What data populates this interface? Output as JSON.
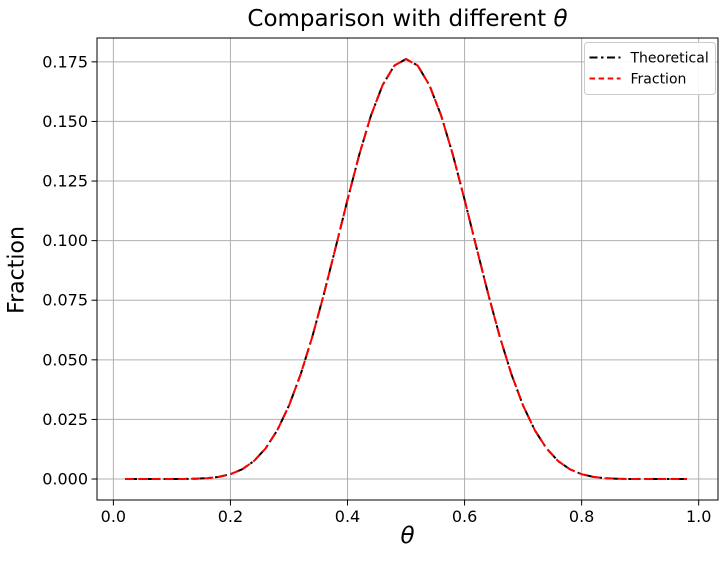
{
  "figure": {
    "title_prefix": "Comparison with different ",
    "title_math": "θ",
    "xlabel": "θ",
    "ylabel": "Fraction"
  },
  "chart_data": {
    "type": "line",
    "title": "Comparison with different θ",
    "xlabel": "θ",
    "ylabel": "Fraction",
    "grid": true,
    "legend_position": "upper right",
    "xlim": [
      -0.028,
      1.033
    ],
    "ylim": [
      -0.0088,
      0.185
    ],
    "xticks": {
      "values": [
        0.0,
        0.2,
        0.4,
        0.6,
        0.8,
        1.0
      ],
      "labels": [
        "0.0",
        "0.2",
        "0.4",
        "0.6",
        "0.8",
        "1.0"
      ]
    },
    "yticks": {
      "values": [
        0.0,
        0.025,
        0.05,
        0.075,
        0.1,
        0.125,
        0.15,
        0.175
      ],
      "labels": [
        "0.000",
        "0.025",
        "0.050",
        "0.075",
        "0.100",
        "0.125",
        "0.150",
        "0.175"
      ]
    },
    "x": [
      0.02,
      0.04,
      0.06,
      0.08,
      0.1,
      0.12,
      0.14,
      0.16,
      0.18,
      0.2,
      0.22,
      0.24,
      0.26,
      0.28,
      0.3,
      0.32,
      0.34,
      0.36,
      0.38,
      0.4,
      0.42,
      0.44,
      0.46,
      0.48,
      0.5,
      0.52,
      0.54,
      0.56,
      0.58,
      0.6,
      0.62,
      0.64,
      0.66,
      0.68,
      0.7,
      0.72,
      0.74,
      0.76,
      0.78,
      0.8,
      0.82,
      0.84,
      0.86,
      0.88,
      0.9,
      0.92,
      0.94,
      0.96,
      0.98
    ],
    "series": [
      {
        "name": "Theoretical",
        "color": "#000000",
        "linestyle": "dashdot",
        "values": [
          0,
          0,
          0,
          1e-06,
          1e-05,
          3e-05,
          0.00012,
          0.00036,
          0.00091,
          0.00203,
          0.00409,
          0.00753,
          0.01284,
          0.02049,
          0.03081,
          0.04397,
          0.05982,
          0.07789,
          0.09736,
          0.11714,
          0.13597,
          0.15242,
          0.16525,
          0.17341,
          0.1762,
          0.17341,
          0.16525,
          0.15242,
          0.13597,
          0.11714,
          0.09736,
          0.07789,
          0.05982,
          0.04397,
          0.03081,
          0.02049,
          0.01284,
          0.00753,
          0.00409,
          0.00203,
          0.00091,
          0.00036,
          0.00012,
          3e-05,
          1e-05,
          1e-06,
          0,
          0,
          0
        ]
      },
      {
        "name": "Fraction",
        "color": "#ff0000",
        "linestyle": "dashed",
        "values": [
          0,
          0,
          0,
          1e-06,
          1e-05,
          3e-05,
          0.00012,
          0.00036,
          0.00091,
          0.00203,
          0.00409,
          0.00753,
          0.01284,
          0.02049,
          0.03081,
          0.04397,
          0.05982,
          0.07789,
          0.09736,
          0.11714,
          0.13597,
          0.15242,
          0.16525,
          0.17341,
          0.1762,
          0.17341,
          0.16525,
          0.15242,
          0.13597,
          0.11714,
          0.09736,
          0.07789,
          0.05982,
          0.04397,
          0.03081,
          0.02049,
          0.01284,
          0.00753,
          0.00409,
          0.00203,
          0.00091,
          0.00036,
          0.00012,
          3e-05,
          1e-05,
          1e-06,
          0,
          0,
          0
        ]
      }
    ],
    "colors": {
      "grid": "#b0b0b0",
      "spine": "#000000",
      "tick": "#000000",
      "legend_border": "#cccccc",
      "background": "#ffffff"
    }
  }
}
